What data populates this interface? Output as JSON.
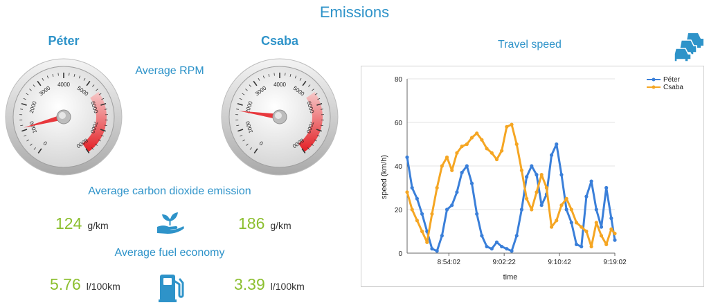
{
  "header": {
    "title": "Emissions"
  },
  "players": [
    {
      "name": "Péter",
      "rpm": 1100,
      "co2_value": "124",
      "co2_unit": "g/km",
      "fuel_value": "5.76",
      "fuel_unit": "l/100km"
    },
    {
      "name": "Csaba",
      "rpm": 1750,
      "co2_value": "186",
      "co2_unit": "g/km",
      "fuel_value": "3.39",
      "fuel_unit": "l/100km"
    }
  ],
  "sections": {
    "avg_rpm": "Average RPM",
    "co2": "Average carbon dioxide emission",
    "fuel": "Average fuel economy",
    "travel_speed": "Travel speed"
  },
  "gauge": {
    "ticks": [
      "0",
      "1000",
      "2000",
      "3000",
      "4000",
      "5000",
      "6000",
      "7000",
      "8000"
    ],
    "max": 8000,
    "redline_start": 5500,
    "colors": {
      "needle": "#e8383d",
      "redzone": "#e31e24"
    }
  },
  "icons": {
    "co2": "hand-plant-icon",
    "fuel": "fuel-pump-icon",
    "traffic": "cars-icon"
  },
  "chart_data": {
    "type": "line",
    "xlabel": "time",
    "ylabel": "speed (km/h)",
    "ylim": [
      0,
      80
    ],
    "yticks": [
      0,
      20,
      40,
      60,
      80
    ],
    "xticks": [
      "8:54:02",
      "9:02:22",
      "9:10:42",
      "9:19:02"
    ],
    "legend_position": "top-right",
    "series": [
      {
        "name": "Péter",
        "color": "#3a7fd9",
        "x": [
          "8:47:45",
          "8:48:30",
          "8:49:15",
          "8:50:00",
          "8:50:45",
          "8:51:30",
          "8:52:15",
          "8:53:00",
          "8:53:45",
          "8:54:30",
          "8:55:15",
          "8:56:00",
          "8:56:45",
          "8:57:30",
          "8:58:15",
          "8:59:00",
          "8:59:45",
          "9:00:30",
          "9:01:15",
          "9:02:00",
          "9:02:45",
          "9:03:30",
          "9:04:15",
          "9:05:00",
          "9:05:45",
          "9:06:30",
          "9:07:15",
          "9:08:00",
          "9:08:45",
          "9:09:30",
          "9:10:15",
          "9:11:00",
          "9:11:45",
          "9:12:30",
          "9:13:15",
          "9:14:00",
          "9:14:45",
          "9:15:30",
          "9:16:15",
          "9:17:00",
          "9:17:45",
          "9:18:30",
          "9:19:02"
        ],
        "y": [
          44,
          30,
          25,
          18,
          10,
          2,
          1,
          8,
          20,
          22,
          28,
          37,
          40,
          32,
          18,
          8,
          3,
          2,
          5,
          3,
          2,
          1,
          8,
          20,
          35,
          40,
          36,
          22,
          27,
          45,
          50,
          36,
          20,
          14,
          4,
          3,
          26,
          33,
          20,
          12,
          30,
          16,
          6
        ]
      },
      {
        "name": "Csaba",
        "color": "#f5a623",
        "x": [
          "8:47:45",
          "8:48:30",
          "8:49:15",
          "8:50:00",
          "8:50:45",
          "8:51:30",
          "8:52:15",
          "8:53:00",
          "8:53:45",
          "8:54:30",
          "8:55:15",
          "8:56:00",
          "8:56:45",
          "8:57:30",
          "8:58:15",
          "8:59:00",
          "8:59:45",
          "9:00:30",
          "9:01:15",
          "9:02:00",
          "9:02:45",
          "9:03:30",
          "9:04:15",
          "9:05:00",
          "9:05:45",
          "9:06:30",
          "9:07:15",
          "9:08:00",
          "9:08:45",
          "9:09:30",
          "9:10:15",
          "9:11:00",
          "9:11:45",
          "9:12:30",
          "9:13:15",
          "9:14:00",
          "9:14:45",
          "9:15:30",
          "9:16:15",
          "9:17:00",
          "9:17:45",
          "9:18:30",
          "9:19:02"
        ],
        "y": [
          28,
          20,
          15,
          10,
          5,
          18,
          30,
          40,
          44,
          38,
          46,
          49,
          50,
          53,
          55,
          52,
          48,
          46,
          43,
          47,
          58,
          59,
          50,
          38,
          25,
          20,
          28,
          36,
          30,
          12,
          15,
          22,
          25,
          20,
          14,
          12,
          10,
          3,
          14,
          8,
          4,
          11,
          9
        ]
      }
    ]
  }
}
